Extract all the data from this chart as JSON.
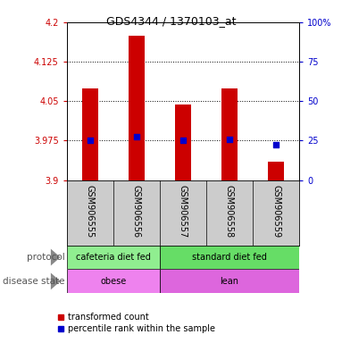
{
  "title": "GDS4344 / 1370103_at",
  "samples": [
    "GSM906555",
    "GSM906556",
    "GSM906557",
    "GSM906558",
    "GSM906559"
  ],
  "bar_values": [
    4.075,
    4.175,
    4.043,
    4.075,
    3.935
  ],
  "bar_bottom": 3.9,
  "percentile_values": [
    3.975,
    3.983,
    3.975,
    3.978,
    3.968
  ],
  "bar_color": "#cc0000",
  "dot_color": "#0000cc",
  "ylim": [
    3.9,
    4.2
  ],
  "yticks_left": [
    3.9,
    3.975,
    4.05,
    4.125,
    4.2
  ],
  "yticks_right_pct": [
    0,
    25,
    50,
    75,
    100
  ],
  "ytick_labels_left": [
    "3.9",
    "3.975",
    "4.05",
    "4.125",
    "4.2"
  ],
  "ytick_labels_right": [
    "0",
    "25",
    "50",
    "75",
    "100%"
  ],
  "dotted_lines": [
    3.975,
    4.05,
    4.125
  ],
  "protocol_labels": [
    "cafeteria diet fed",
    "standard diet fed"
  ],
  "protocol_split": 2,
  "protocol_color1": "#90ee90",
  "protocol_color2": "#66dd66",
  "disease_labels": [
    "obese",
    "lean"
  ],
  "disease_split": 2,
  "disease_color1": "#ee82ee",
  "disease_color2": "#dd66dd",
  "legend_red": "transformed count",
  "legend_blue": "percentile rank within the sample",
  "bg_color": "#ffffff",
  "label_color_left": "#cc0000",
  "label_color_right": "#0000cc",
  "sample_bg": "#cccccc",
  "bar_width": 0.35
}
